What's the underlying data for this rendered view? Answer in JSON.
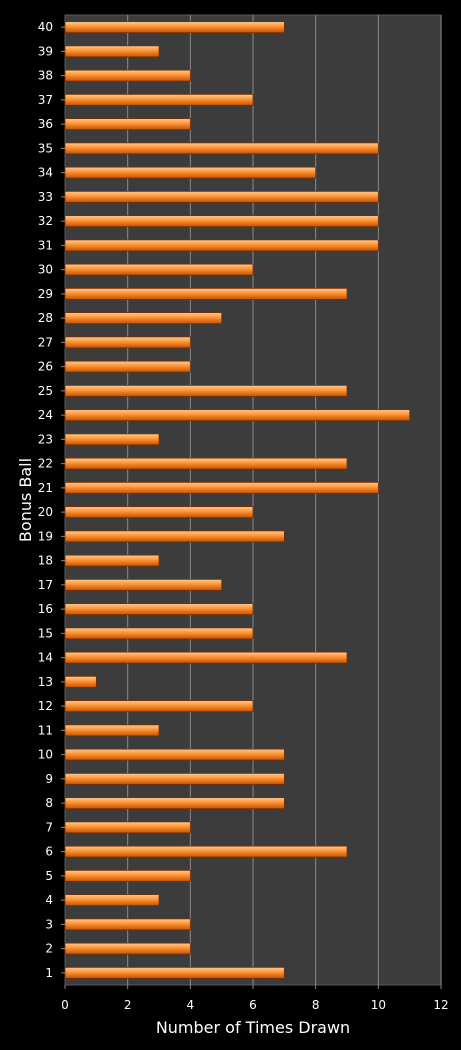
{
  "chart_data": {
    "type": "bar",
    "orientation": "horizontal",
    "title": "",
    "xlabel": "Number of Times Drawn",
    "ylabel": "Bonus Ball",
    "xlim": [
      0,
      12
    ],
    "xticks": [
      "0",
      "2",
      "4",
      "6",
      "8",
      "10",
      "12"
    ],
    "grid": true,
    "categories": [
      "1",
      "2",
      "3",
      "4",
      "5",
      "6",
      "7",
      "8",
      "9",
      "10",
      "11",
      "12",
      "13",
      "14",
      "15",
      "16",
      "17",
      "18",
      "19",
      "20",
      "21",
      "22",
      "23",
      "24",
      "25",
      "26",
      "27",
      "28",
      "29",
      "30",
      "31",
      "32",
      "33",
      "34",
      "35",
      "36",
      "37",
      "38",
      "39",
      "40"
    ],
    "values": [
      7,
      4,
      4,
      3,
      4,
      9,
      4,
      7,
      7,
      7,
      3,
      6,
      1,
      9,
      6,
      6,
      5,
      3,
      7,
      6,
      10,
      9,
      3,
      11,
      9,
      4,
      4,
      5,
      9,
      6,
      10,
      10,
      10,
      8,
      10,
      4,
      6,
      4,
      3,
      7
    ],
    "colors": {
      "background": "#000000",
      "plot_background": "#3c3c3c",
      "grid": "#8a8a8a",
      "bar_light": "#ffc896",
      "bar_mid": "#ff8c28",
      "bar_dark": "#c85000",
      "bar_edge": "#7a3000",
      "text": "#ffffff"
    }
  }
}
